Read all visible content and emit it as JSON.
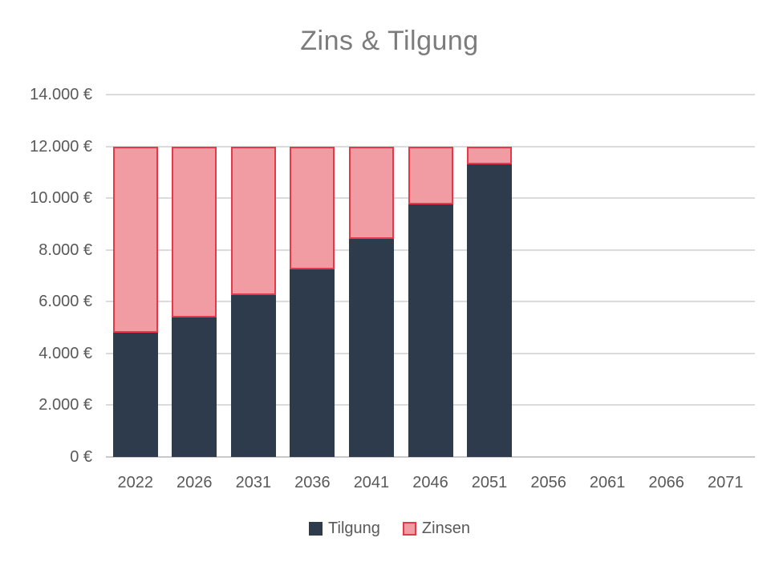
{
  "title": "Zins & Tilgung",
  "legend": {
    "items": [
      {
        "label": "Tilgung"
      },
      {
        "label": "Zinsen"
      }
    ]
  },
  "colors": {
    "tilgung_fill": "#2E3B4D",
    "zinsen_fill": "#F09CA2",
    "zinsen_border": "#E5394A",
    "gridline": "#DBDBDB",
    "axis_line": "#C9C9C9",
    "tick_text": "#595959",
    "title_text": "#7C7C7C",
    "background": "#FFFFFF"
  },
  "chart_data": {
    "type": "bar",
    "stacked": true,
    "title": "Zins & Tilgung",
    "xlabel": "",
    "ylabel": "",
    "categories": [
      "2022",
      "2026",
      "2031",
      "2036",
      "2041",
      "2046",
      "2051",
      "2056",
      "2061",
      "2066",
      "2071"
    ],
    "series": [
      {
        "name": "Tilgung",
        "color": "#2E3B4D",
        "border_color": null,
        "values": [
          4800,
          5400,
          6260,
          7260,
          8420,
          9760,
          11310,
          null,
          null,
          null,
          null
        ]
      },
      {
        "name": "Zinsen",
        "color": "#F09CA2",
        "border_color": "#E5394A",
        "values": [
          7200,
          6600,
          5740,
          4740,
          3580,
          2240,
          690,
          null,
          null,
          null,
          null
        ]
      }
    ],
    "stack_total_visible_bars": 12000,
    "ylim": [
      0,
      14000
    ],
    "ytick_step": 2000,
    "ytick_labels": [
      "0 €",
      "2.000 €",
      "4.000 €",
      "6.000 €",
      "8.000 €",
      "10.000 €",
      "12.000 €",
      "14.000 €"
    ],
    "grid": true,
    "legend_position": "bottom"
  }
}
